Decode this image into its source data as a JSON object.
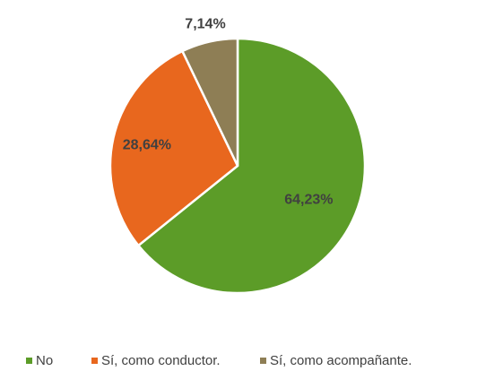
{
  "chart_data": {
    "type": "pie",
    "categories": [
      "No",
      "Sí, como conductor.",
      "Sí, como acompañante."
    ],
    "values": [
      64.23,
      28.64,
      7.14
    ],
    "value_labels": [
      "64,23%",
      "28,64%",
      "7,14%"
    ],
    "colors": [
      "#5c9c28",
      "#e8671e",
      "#8e7e55"
    ],
    "legend": "bottom"
  }
}
